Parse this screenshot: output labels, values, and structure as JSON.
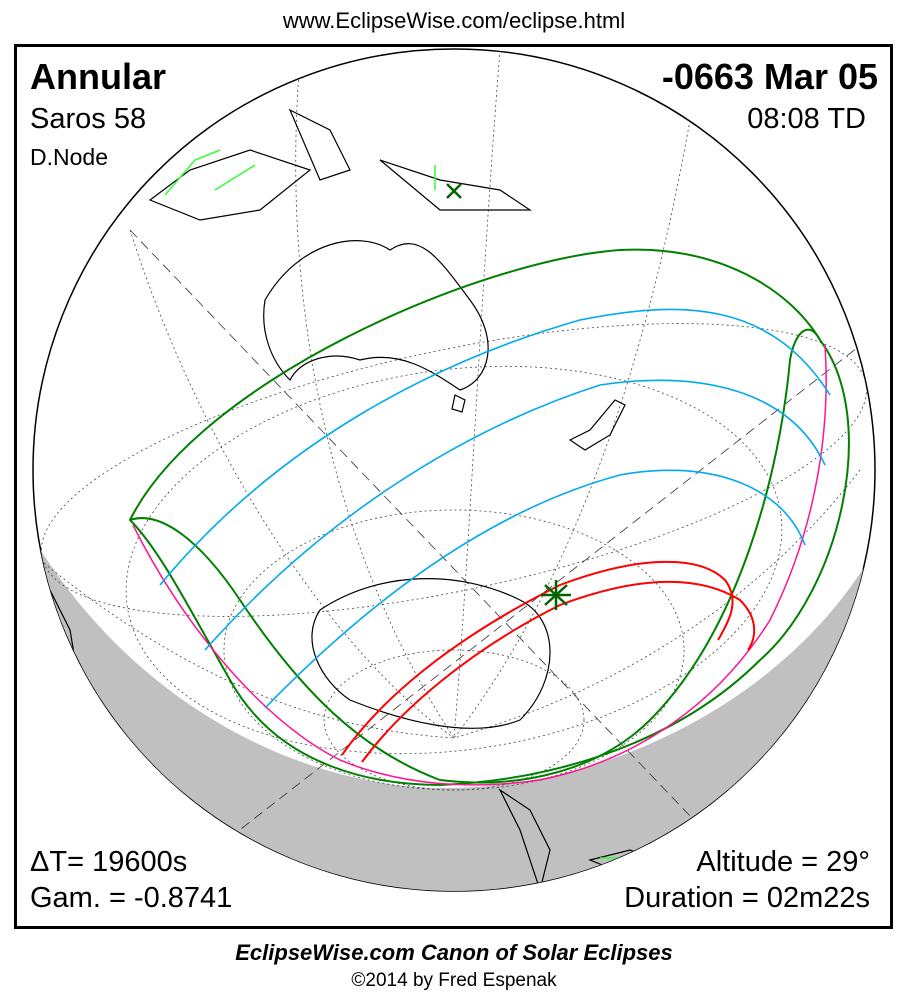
{
  "header": {
    "url": "www.EclipseWise.com/eclipse.html"
  },
  "eclipse": {
    "type": "Annular",
    "date": "-0663 Mar 05",
    "saros": "Saros  58",
    "time": "08:08 TD",
    "node": "D.Node",
    "delta_t": "ΔT=  19600s",
    "gamma": "Gam. = -0.8741",
    "altitude": "Altitude = 29°",
    "duration": "Duration = 02m22s"
  },
  "colors": {
    "penumbra_limit": "#008000",
    "rise_set": "#ff1493",
    "umbra_path": "#ff0000",
    "magnitude_lines": "#00aaee",
    "night": "#c0c0c0",
    "coast_highlight": "#33ff33"
  },
  "footer": {
    "title": "EclipseWise.com Canon of Solar Eclipses",
    "copyright": "©2014 by Fred Espenak"
  }
}
